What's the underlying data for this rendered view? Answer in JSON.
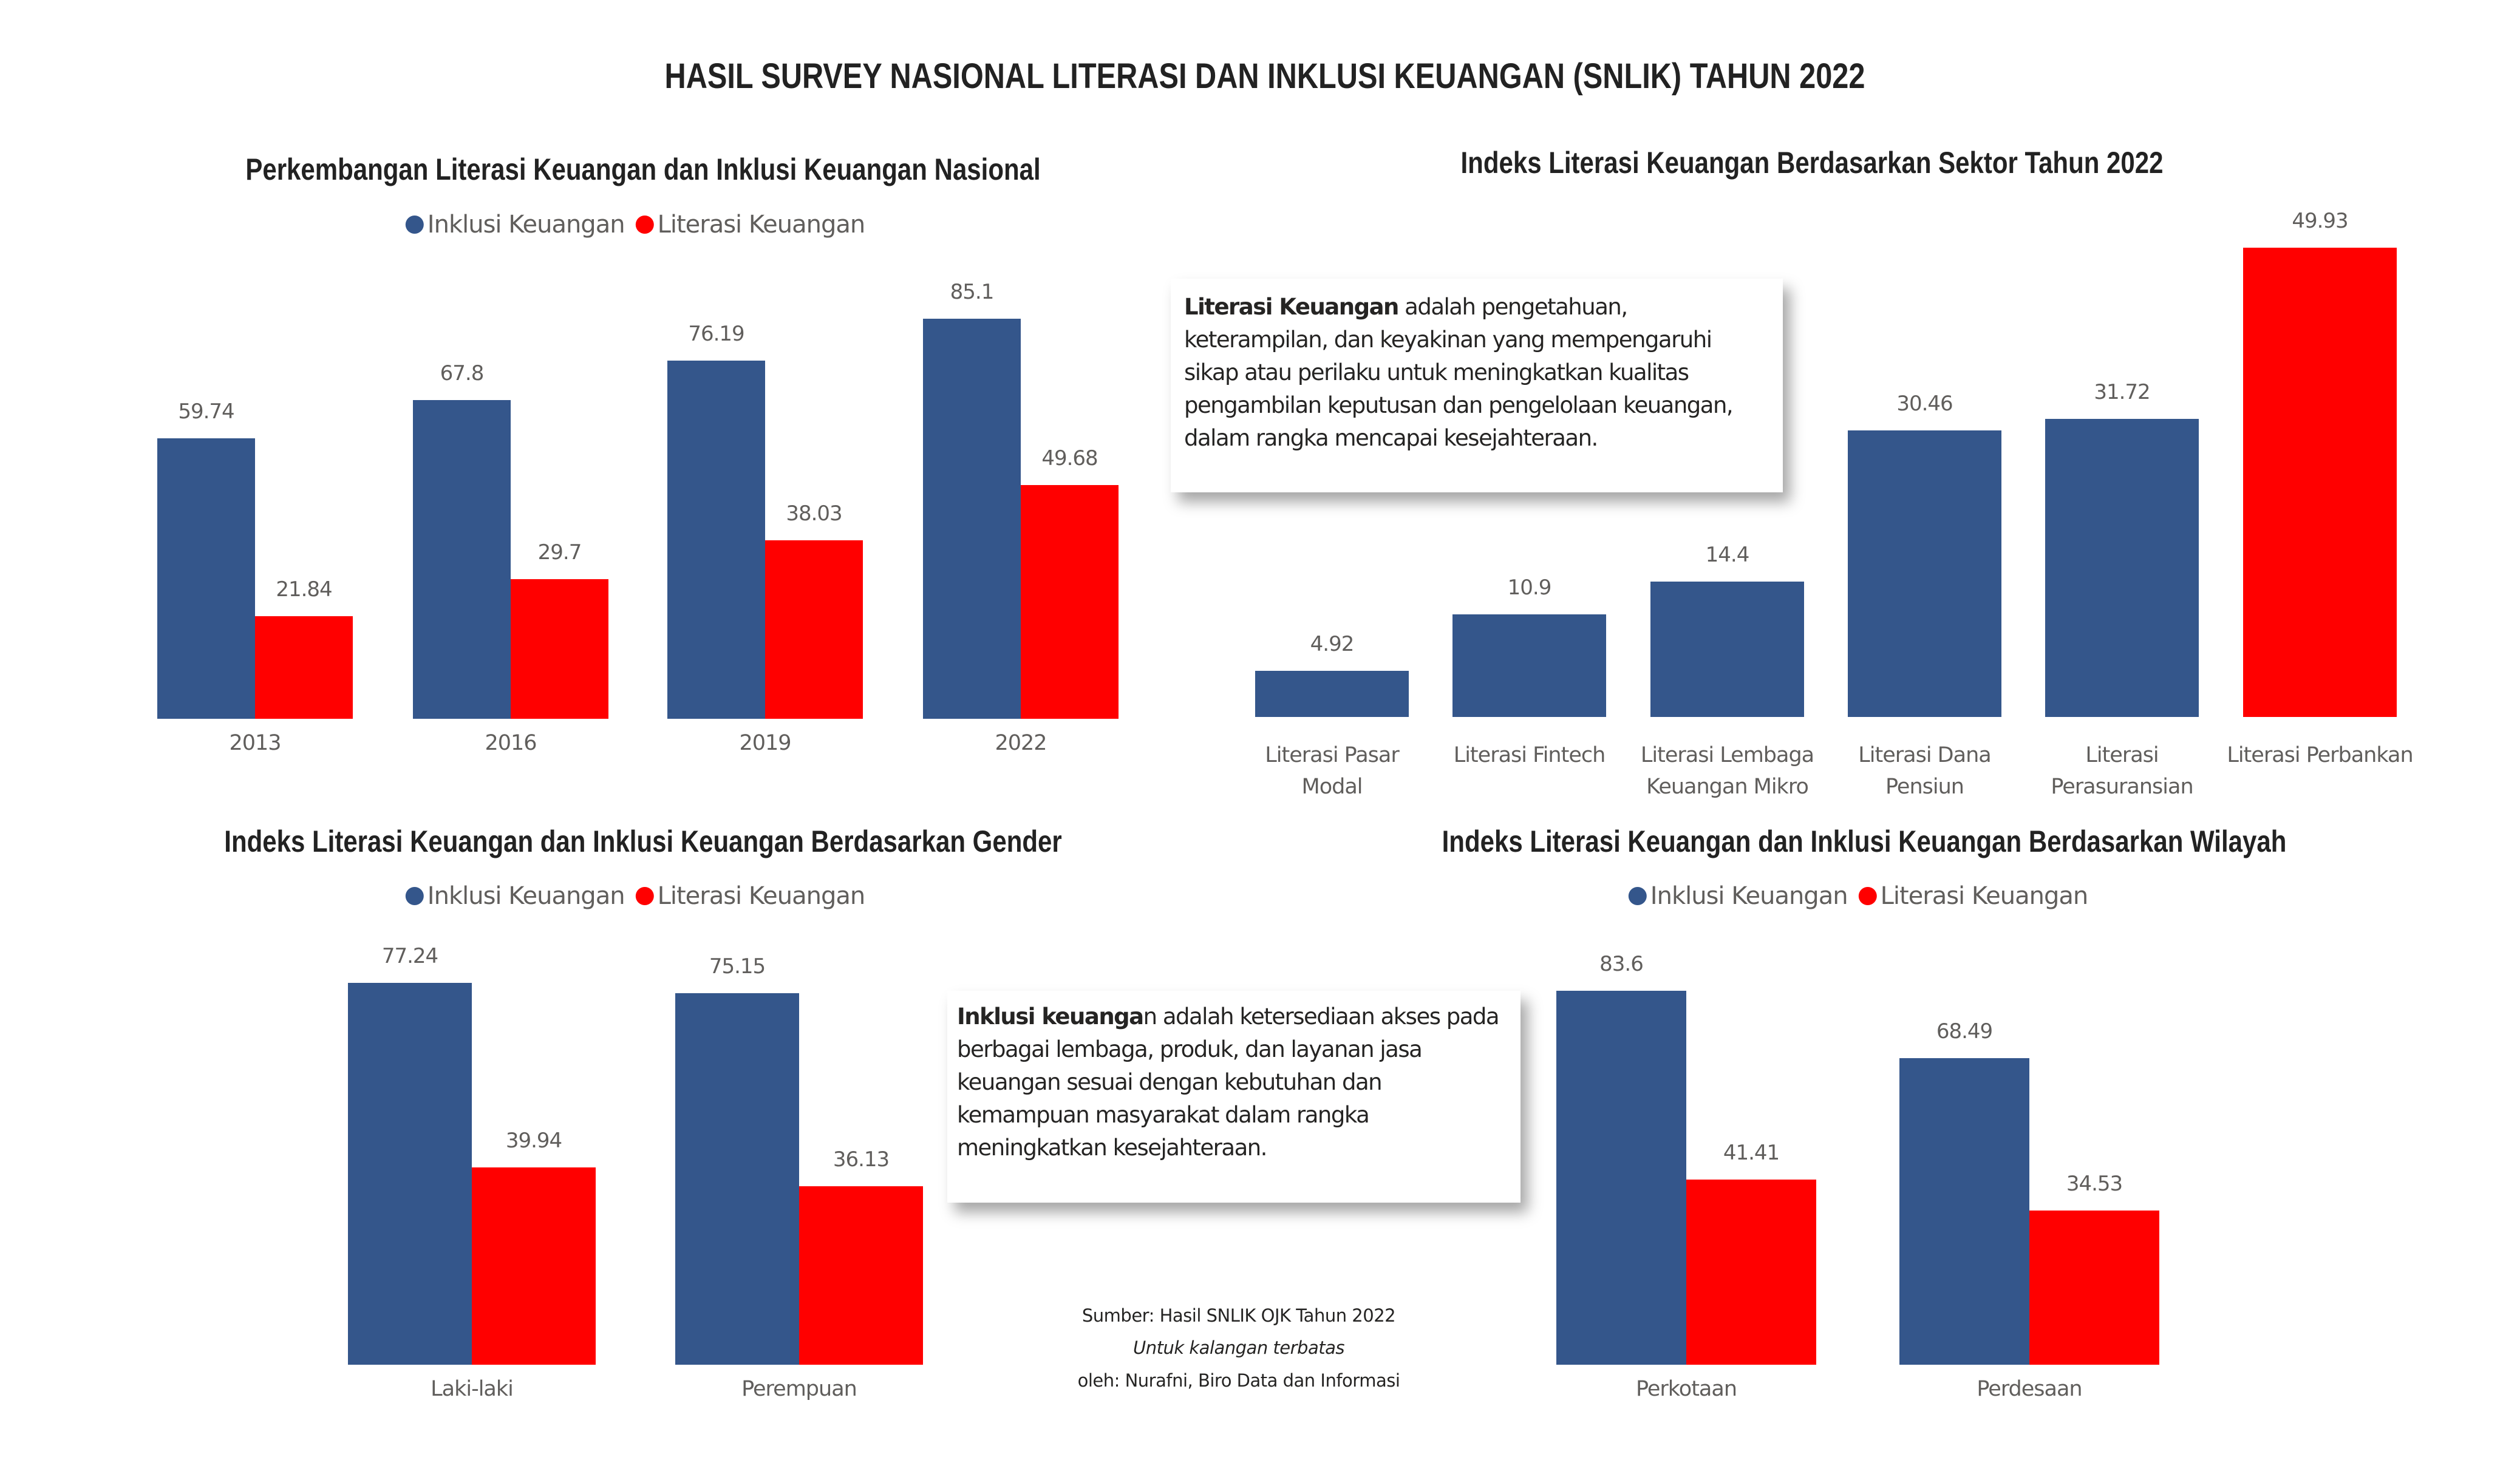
{
  "main_title": "HASIL SURVEY NASIONAL LITERASI DAN INKLUSI KEUANGAN (SNLIK) TAHUN 2022",
  "colors": {
    "inklusi": "#34568B",
    "literasi": "#FF0000"
  },
  "legend": {
    "inklusi": "Inklusi Keuangan",
    "literasi": "Literasi Keuangan"
  },
  "chart_data": [
    {
      "id": "nasional",
      "type": "bar",
      "title": "Perkembangan Literasi Keuangan dan Inklusi Keuangan Nasional",
      "categories": [
        "2013",
        "2016",
        "2019",
        "2022"
      ],
      "series": [
        {
          "name": "Inklusi Keuangan",
          "values": [
            59.74,
            67.8,
            76.19,
            85.1
          ]
        },
        {
          "name": "Literasi Keuangan",
          "values": [
            21.84,
            29.7,
            38.03,
            49.68
          ]
        }
      ],
      "value_labels": {
        "inklusi": [
          "59.74",
          "67.8",
          "76.19",
          "85.1"
        ],
        "literasi": [
          "21.84",
          "29.7",
          "38.03",
          "49.68"
        ]
      },
      "xlabel": "",
      "ylabel": "",
      "ylim": [
        0,
        100
      ],
      "grid": false,
      "legend_position": "top-center"
    },
    {
      "id": "sektor",
      "type": "bar",
      "title": "Indeks Literasi Keuangan Berdasarkan Sektor Tahun 2022",
      "categories": [
        [
          "Literasi Pasar",
          "Modal"
        ],
        [
          "Literasi Fintech"
        ],
        [
          "Literasi Lembaga",
          "Keuangan Mikro"
        ],
        [
          "Literasi Dana",
          "Pensiun"
        ],
        [
          "Literasi",
          "Perasuransian"
        ],
        [
          "Literasi Perbankan"
        ]
      ],
      "values": [
        4.92,
        10.9,
        14.4,
        30.46,
        31.72,
        49.93
      ],
      "value_labels": [
        "4.92",
        "10.9",
        "14.4",
        "30.46",
        "31.72",
        "49.93"
      ],
      "highlight_index": 5,
      "xlabel": "",
      "ylabel": "",
      "ylim": [
        0,
        55
      ],
      "grid": false
    },
    {
      "id": "gender",
      "type": "bar",
      "title": "Indeks Literasi Keuangan dan Inklusi Keuangan Berdasarkan Gender",
      "categories": [
        "Laki-laki",
        "Perempuan"
      ],
      "series": [
        {
          "name": "Inklusi Keuangan",
          "values": [
            77.24,
            75.15
          ]
        },
        {
          "name": "Literasi Keuangan",
          "values": [
            39.94,
            36.13
          ]
        }
      ],
      "value_labels": {
        "inklusi": [
          "77.24",
          "75.15"
        ],
        "literasi": [
          "39.94",
          "36.13"
        ]
      },
      "xlabel": "",
      "ylabel": "",
      "ylim": [
        0,
        100
      ],
      "grid": false,
      "legend_position": "top-center"
    },
    {
      "id": "wilayah",
      "type": "bar",
      "title": "Indeks Literasi Keuangan dan Inklusi Keuangan Berdasarkan Wilayah",
      "categories": [
        "Perkotaan",
        "Perdesaan"
      ],
      "series": [
        {
          "name": "Inklusi Keuangan",
          "values": [
            83.6,
            68.49
          ]
        },
        {
          "name": "Literasi Keuangan",
          "values": [
            41.41,
            34.53
          ]
        }
      ],
      "value_labels": {
        "inklusi": [
          "83.6",
          "68.49"
        ],
        "literasi": [
          "41.41",
          "34.53"
        ]
      },
      "xlabel": "",
      "ylabel": "",
      "ylim": [
        0,
        100
      ],
      "grid": false,
      "legend_position": "top-center"
    }
  ],
  "notes": {
    "literasi": {
      "bold": "Literasi Keuangan",
      "text": " adalah pengetahuan, keterampilan, dan keyakinan yang mempengaruhi sikap atau perilaku untuk meningkatkan kualitas pengambilan keputusan dan pengelolaan keuangan, dalam rangka mencapai kesejahteraan."
    },
    "inklusi": {
      "bold": "Inklusi keuanga",
      "text": "n adalah ketersediaan akses pada berbagai lembaga, produk, dan layanan jasa keuangan sesuai dengan kebutuhan dan kemampuan masyarakat dalam rangka meningkatkan kesejahteraan."
    }
  },
  "footer": {
    "source": "Sumber: Hasil SNLIK OJK Tahun 2022",
    "restriction": "Untuk kalangan terbatas",
    "author": "oleh: Nurafni, Biro Data dan Informasi"
  }
}
